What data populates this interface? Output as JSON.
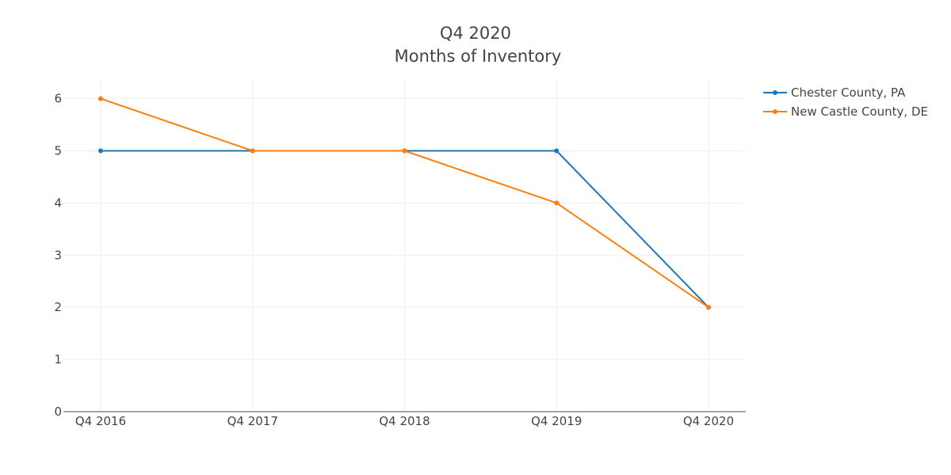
{
  "chart_data": {
    "type": "line",
    "title": "Q4 2020",
    "subtitle": "Months of Inventory",
    "categories": [
      "Q4 2016",
      "Q4 2017",
      "Q4 2018",
      "Q4 2019",
      "Q4 2020"
    ],
    "series": [
      {
        "name": "Chester County, PA",
        "color": "#1f77b4",
        "values": [
          5,
          5,
          5,
          5,
          2
        ]
      },
      {
        "name": "New Castle County, DE",
        "color": "#ff7f0e",
        "values": [
          6,
          5,
          5,
          4,
          2
        ]
      }
    ],
    "yticks": [
      "0",
      "1",
      "2",
      "3",
      "4",
      "5",
      "6"
    ],
    "ylim": [
      0,
      6.37
    ],
    "xlabel": "",
    "ylabel": "",
    "grid": true,
    "legend": "top-right"
  }
}
